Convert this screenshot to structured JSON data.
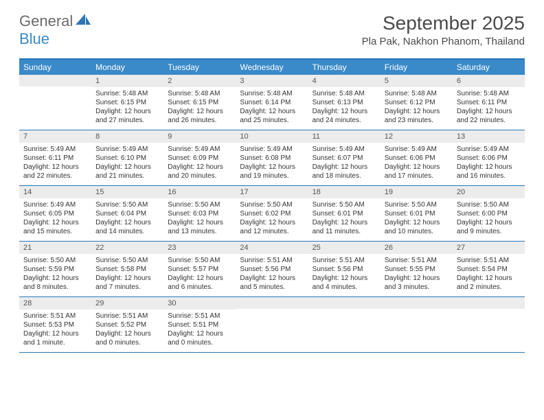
{
  "logo": {
    "text1": "General",
    "text2": "Blue"
  },
  "title": "September 2025",
  "location": "Pla Pak, Nakhon Phanom, Thailand",
  "days_of_week": [
    "Sunday",
    "Monday",
    "Tuesday",
    "Wednesday",
    "Thursday",
    "Friday",
    "Saturday"
  ],
  "colors": {
    "header_bar": "#3a8ac9",
    "rule": "#2676b8",
    "daynum_bg": "#ececec",
    "text": "#333333",
    "title_text": "#4a4a4a"
  },
  "typography": {
    "title_fontsize": 28,
    "location_fontsize": 15,
    "dow_fontsize": 12,
    "body_fontsize": 10
  },
  "weeks": [
    [
      null,
      {
        "n": "1",
        "sr": "Sunrise: 5:48 AM",
        "ss": "Sunset: 6:15 PM",
        "d1": "Daylight: 12 hours",
        "d2": "and 27 minutes."
      },
      {
        "n": "2",
        "sr": "Sunrise: 5:48 AM",
        "ss": "Sunset: 6:15 PM",
        "d1": "Daylight: 12 hours",
        "d2": "and 26 minutes."
      },
      {
        "n": "3",
        "sr": "Sunrise: 5:48 AM",
        "ss": "Sunset: 6:14 PM",
        "d1": "Daylight: 12 hours",
        "d2": "and 25 minutes."
      },
      {
        "n": "4",
        "sr": "Sunrise: 5:48 AM",
        "ss": "Sunset: 6:13 PM",
        "d1": "Daylight: 12 hours",
        "d2": "and 24 minutes."
      },
      {
        "n": "5",
        "sr": "Sunrise: 5:48 AM",
        "ss": "Sunset: 6:12 PM",
        "d1": "Daylight: 12 hours",
        "d2": "and 23 minutes."
      },
      {
        "n": "6",
        "sr": "Sunrise: 5:48 AM",
        "ss": "Sunset: 6:11 PM",
        "d1": "Daylight: 12 hours",
        "d2": "and 22 minutes."
      }
    ],
    [
      {
        "n": "7",
        "sr": "Sunrise: 5:49 AM",
        "ss": "Sunset: 6:11 PM",
        "d1": "Daylight: 12 hours",
        "d2": "and 22 minutes."
      },
      {
        "n": "8",
        "sr": "Sunrise: 5:49 AM",
        "ss": "Sunset: 6:10 PM",
        "d1": "Daylight: 12 hours",
        "d2": "and 21 minutes."
      },
      {
        "n": "9",
        "sr": "Sunrise: 5:49 AM",
        "ss": "Sunset: 6:09 PM",
        "d1": "Daylight: 12 hours",
        "d2": "and 20 minutes."
      },
      {
        "n": "10",
        "sr": "Sunrise: 5:49 AM",
        "ss": "Sunset: 6:08 PM",
        "d1": "Daylight: 12 hours",
        "d2": "and 19 minutes."
      },
      {
        "n": "11",
        "sr": "Sunrise: 5:49 AM",
        "ss": "Sunset: 6:07 PM",
        "d1": "Daylight: 12 hours",
        "d2": "and 18 minutes."
      },
      {
        "n": "12",
        "sr": "Sunrise: 5:49 AM",
        "ss": "Sunset: 6:06 PM",
        "d1": "Daylight: 12 hours",
        "d2": "and 17 minutes."
      },
      {
        "n": "13",
        "sr": "Sunrise: 5:49 AM",
        "ss": "Sunset: 6:06 PM",
        "d1": "Daylight: 12 hours",
        "d2": "and 16 minutes."
      }
    ],
    [
      {
        "n": "14",
        "sr": "Sunrise: 5:49 AM",
        "ss": "Sunset: 6:05 PM",
        "d1": "Daylight: 12 hours",
        "d2": "and 15 minutes."
      },
      {
        "n": "15",
        "sr": "Sunrise: 5:50 AM",
        "ss": "Sunset: 6:04 PM",
        "d1": "Daylight: 12 hours",
        "d2": "and 14 minutes."
      },
      {
        "n": "16",
        "sr": "Sunrise: 5:50 AM",
        "ss": "Sunset: 6:03 PM",
        "d1": "Daylight: 12 hours",
        "d2": "and 13 minutes."
      },
      {
        "n": "17",
        "sr": "Sunrise: 5:50 AM",
        "ss": "Sunset: 6:02 PM",
        "d1": "Daylight: 12 hours",
        "d2": "and 12 minutes."
      },
      {
        "n": "18",
        "sr": "Sunrise: 5:50 AM",
        "ss": "Sunset: 6:01 PM",
        "d1": "Daylight: 12 hours",
        "d2": "and 11 minutes."
      },
      {
        "n": "19",
        "sr": "Sunrise: 5:50 AM",
        "ss": "Sunset: 6:01 PM",
        "d1": "Daylight: 12 hours",
        "d2": "and 10 minutes."
      },
      {
        "n": "20",
        "sr": "Sunrise: 5:50 AM",
        "ss": "Sunset: 6:00 PM",
        "d1": "Daylight: 12 hours",
        "d2": "and 9 minutes."
      }
    ],
    [
      {
        "n": "21",
        "sr": "Sunrise: 5:50 AM",
        "ss": "Sunset: 5:59 PM",
        "d1": "Daylight: 12 hours",
        "d2": "and 8 minutes."
      },
      {
        "n": "22",
        "sr": "Sunrise: 5:50 AM",
        "ss": "Sunset: 5:58 PM",
        "d1": "Daylight: 12 hours",
        "d2": "and 7 minutes."
      },
      {
        "n": "23",
        "sr": "Sunrise: 5:50 AM",
        "ss": "Sunset: 5:57 PM",
        "d1": "Daylight: 12 hours",
        "d2": "and 6 minutes."
      },
      {
        "n": "24",
        "sr": "Sunrise: 5:51 AM",
        "ss": "Sunset: 5:56 PM",
        "d1": "Daylight: 12 hours",
        "d2": "and 5 minutes."
      },
      {
        "n": "25",
        "sr": "Sunrise: 5:51 AM",
        "ss": "Sunset: 5:56 PM",
        "d1": "Daylight: 12 hours",
        "d2": "and 4 minutes."
      },
      {
        "n": "26",
        "sr": "Sunrise: 5:51 AM",
        "ss": "Sunset: 5:55 PM",
        "d1": "Daylight: 12 hours",
        "d2": "and 3 minutes."
      },
      {
        "n": "27",
        "sr": "Sunrise: 5:51 AM",
        "ss": "Sunset: 5:54 PM",
        "d1": "Daylight: 12 hours",
        "d2": "and 2 minutes."
      }
    ],
    [
      {
        "n": "28",
        "sr": "Sunrise: 5:51 AM",
        "ss": "Sunset: 5:53 PM",
        "d1": "Daylight: 12 hours",
        "d2": "and 1 minute."
      },
      {
        "n": "29",
        "sr": "Sunrise: 5:51 AM",
        "ss": "Sunset: 5:52 PM",
        "d1": "Daylight: 12 hours",
        "d2": "and 0 minutes."
      },
      {
        "n": "30",
        "sr": "Sunrise: 5:51 AM",
        "ss": "Sunset: 5:51 PM",
        "d1": "Daylight: 12 hours",
        "d2": "and 0 minutes."
      },
      null,
      null,
      null,
      null
    ]
  ]
}
